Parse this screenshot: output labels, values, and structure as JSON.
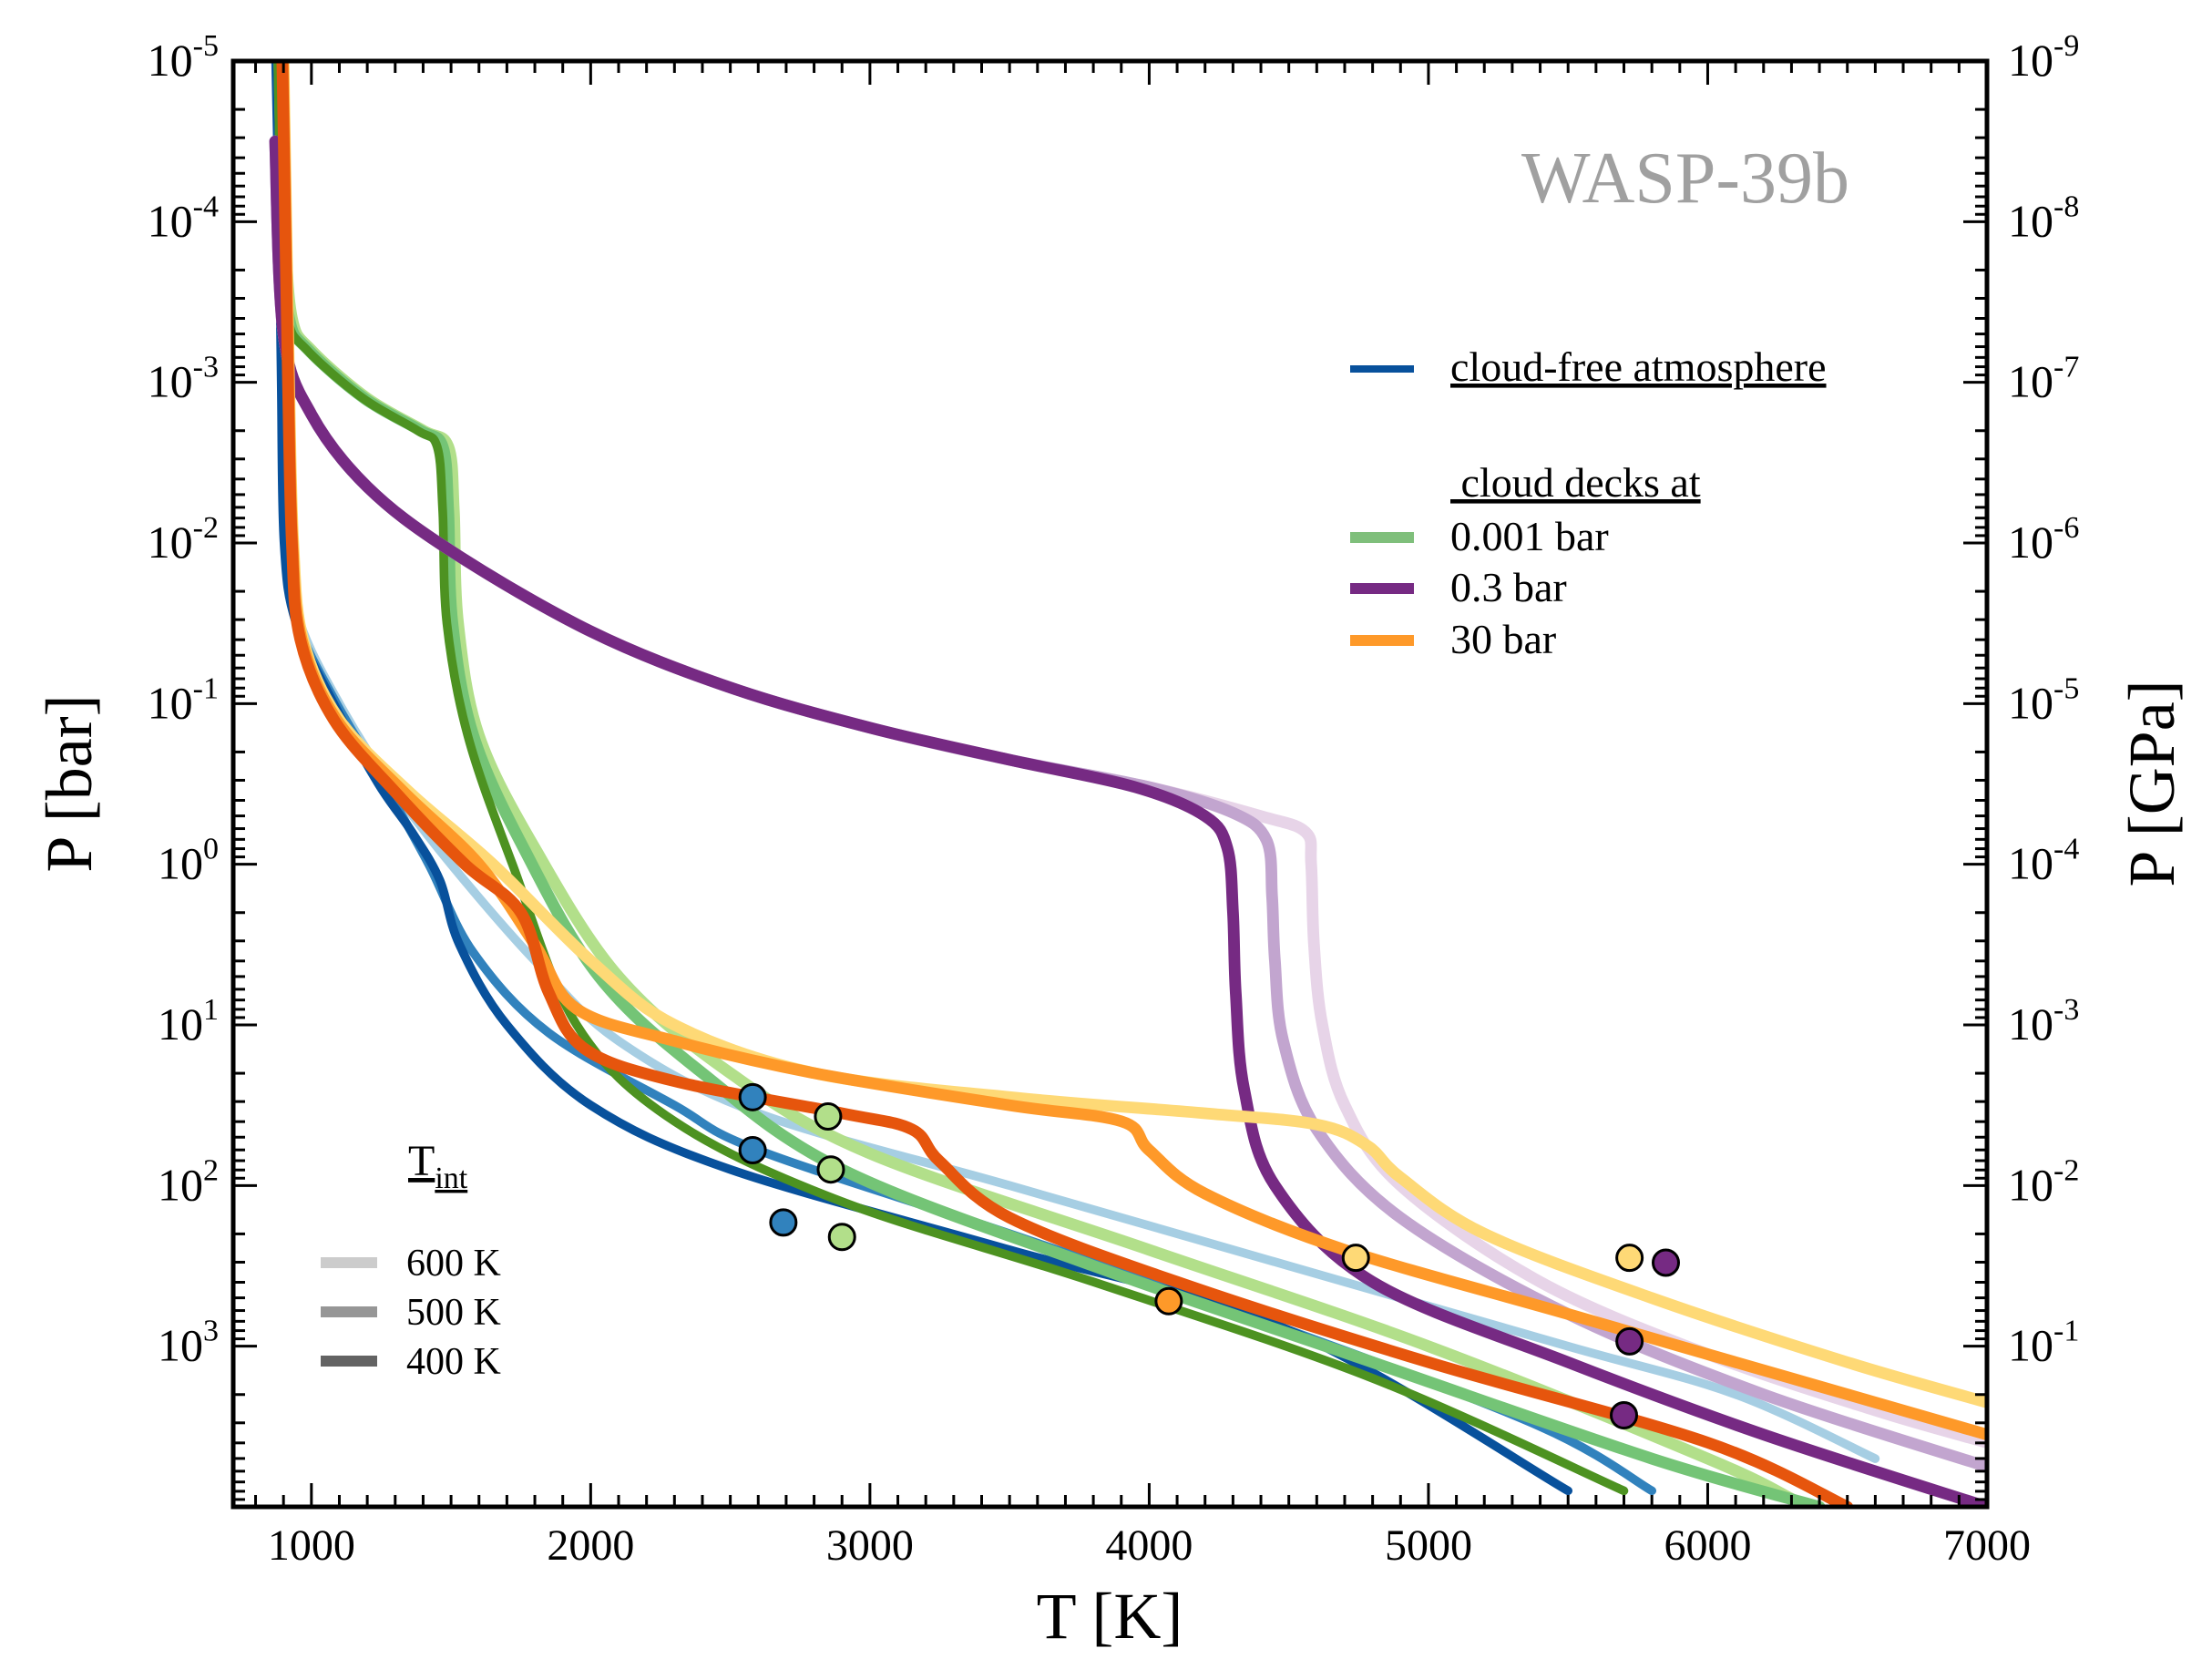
{
  "chart_data": {
    "type": "line",
    "title": "WASP-39b",
    "xlabel": "T [K]",
    "ylabel": "P [bar]",
    "ylabel_right": "P [GPa]",
    "xlim": [
      720,
      7000
    ],
    "ylim_log10_bar": [
      -5,
      4.0
    ],
    "x_ticks": [
      1000,
      2000,
      3000,
      4000,
      5000,
      6000,
      7000
    ],
    "y_ticks_left": [
      {
        "exp": -5,
        "base": "10",
        "sup": "-5"
      },
      {
        "exp": -4,
        "base": "10",
        "sup": "-4"
      },
      {
        "exp": -3,
        "base": "10",
        "sup": "-3"
      },
      {
        "exp": -2,
        "base": "10",
        "sup": "-2"
      },
      {
        "exp": -1,
        "base": "10",
        "sup": "-1"
      },
      {
        "exp": 0,
        "base": "10",
        "sup": "0"
      },
      {
        "exp": 1,
        "base": "10",
        "sup": "1"
      },
      {
        "exp": 2,
        "base": "10",
        "sup": "2"
      },
      {
        "exp": 3,
        "base": "10",
        "sup": "3"
      }
    ],
    "y_ticks_right": [
      {
        "exp": -5,
        "base": "10",
        "sup": "-9"
      },
      {
        "exp": -4,
        "base": "10",
        "sup": "-8"
      },
      {
        "exp": -3,
        "base": "10",
        "sup": "-7"
      },
      {
        "exp": -2,
        "base": "10",
        "sup": "-6"
      },
      {
        "exp": -1,
        "base": "10",
        "sup": "-5"
      },
      {
        "exp": 0,
        "base": "10",
        "sup": "-4"
      },
      {
        "exp": 1,
        "base": "10",
        "sup": "-3"
      },
      {
        "exp": 2,
        "base": "10",
        "sup": "-2"
      },
      {
        "exp": 3,
        "base": "10",
        "sup": "-1"
      }
    ],
    "legend": {
      "header_cloudfree": "cloud-free atmosphere",
      "header_clouds": " cloud decks at",
      "entries": [
        {
          "label": "0.001 bar",
          "color": "#7fbf7b"
        },
        {
          "label": "0.3 bar",
          "color": "#762a83"
        },
        {
          "label": "30 bar",
          "color": "#fe9929"
        }
      ],
      "cloudfree_color": "#08519c"
    },
    "tint_legend": {
      "title_main": "T",
      "title_sub": "int",
      "entries": [
        {
          "label": "600 K",
          "color": "#cccccc"
        },
        {
          "label": "500 K",
          "color": "#969696"
        },
        {
          "label": "400 K",
          "color": "#636363"
        }
      ]
    },
    "series": [
      {
        "name": "cloud-free 600 K",
        "color": "#a6cee3",
        "width": 6,
        "points": [
          [
            880,
            -5
          ],
          [
            892,
            -4
          ],
          [
            900,
            -3
          ],
          [
            910,
            -2
          ],
          [
            960,
            -1.5
          ],
          [
            1100,
            -1
          ],
          [
            1280,
            -0.5
          ],
          [
            1500,
            0
          ],
          [
            1800,
            0.6
          ],
          [
            2100,
            1.1
          ],
          [
            2600,
            1.55
          ],
          [
            3500,
            2.0
          ],
          [
            4500,
            2.5
          ],
          [
            5500,
            3.0
          ],
          [
            6100,
            3.3
          ],
          [
            6600,
            3.7
          ]
        ]
      },
      {
        "name": "cloud-free 500 K",
        "color": "#3182bd",
        "width": 6,
        "points": [
          [
            875,
            -5
          ],
          [
            887,
            -4
          ],
          [
            895,
            -3
          ],
          [
            905,
            -2
          ],
          [
            950,
            -1.5
          ],
          [
            1090,
            -1
          ],
          [
            1260,
            -0.5
          ],
          [
            1420,
            0
          ],
          [
            1580,
            0.55
          ],
          [
            1850,
            1.05
          ],
          [
            2300,
            1.5
          ],
          [
            2600,
            1.78
          ],
          [
            3500,
            2.3
          ],
          [
            4500,
            2.9
          ],
          [
            5400,
            3.5
          ],
          [
            5800,
            3.9
          ]
        ]
      },
      {
        "name": "cloud-free 400 K",
        "color": "#08519c",
        "width": 6,
        "points": [
          [
            872,
            -5
          ],
          [
            884,
            -4
          ],
          [
            892,
            -3
          ],
          [
            902,
            -2
          ],
          [
            945,
            -1.5
          ],
          [
            1080,
            -1
          ],
          [
            1240,
            -0.5
          ],
          [
            1360,
            -0.2
          ],
          [
            1460,
            0.1
          ],
          [
            1530,
            0.5
          ],
          [
            1700,
            1.0
          ],
          [
            2000,
            1.5
          ],
          [
            2500,
            1.9
          ],
          [
            3500,
            2.4
          ],
          [
            4500,
            2.9
          ],
          [
            5500,
            3.9
          ]
        ]
      },
      {
        "name": "0.001 bar 600 K",
        "color": "#b2df8a",
        "width": 8,
        "points": [
          [
            890,
            -5
          ],
          [
            905,
            -4
          ],
          [
            930,
            -3.4
          ],
          [
            1000,
            -3.2
          ],
          [
            1200,
            -2.9
          ],
          [
            1400,
            -2.7
          ],
          [
            1490,
            -2.6
          ],
          [
            1510,
            -2.2
          ],
          [
            1525,
            -1.5
          ],
          [
            1600,
            -0.8
          ],
          [
            1800,
            -0.1
          ],
          [
            2100,
            0.7
          ],
          [
            2500,
            1.3
          ],
          [
            3000,
            1.8
          ],
          [
            4000,
            2.4
          ],
          [
            5000,
            3.0
          ],
          [
            6000,
            3.7
          ],
          [
            6300,
            3.95
          ]
        ]
      },
      {
        "name": "0.001 bar 500 K",
        "color": "#74c476",
        "width": 8,
        "points": [
          [
            885,
            -5
          ],
          [
            898,
            -4
          ],
          [
            920,
            -3.4
          ],
          [
            990,
            -3.2
          ],
          [
            1190,
            -2.9
          ],
          [
            1390,
            -2.7
          ],
          [
            1470,
            -2.6
          ],
          [
            1490,
            -2.2
          ],
          [
            1505,
            -1.5
          ],
          [
            1580,
            -0.8
          ],
          [
            1760,
            -0.1
          ],
          [
            2030,
            0.7
          ],
          [
            2400,
            1.3
          ],
          [
            2900,
            1.9
          ],
          [
            3800,
            2.5
          ],
          [
            4800,
            3.1
          ],
          [
            5800,
            3.7
          ],
          [
            6400,
            4.0
          ]
        ]
      },
      {
        "name": "0.001 bar 400 K",
        "color": "#4d9221",
        "width": 6,
        "points": [
          [
            880,
            -5
          ],
          [
            893,
            -4
          ],
          [
            915,
            -3.4
          ],
          [
            985,
            -3.2
          ],
          [
            1185,
            -2.9
          ],
          [
            1380,
            -2.7
          ],
          [
            1450,
            -2.6
          ],
          [
            1470,
            -2.2
          ],
          [
            1485,
            -1.5
          ],
          [
            1560,
            -0.8
          ],
          [
            1720,
            0
          ],
          [
            1950,
            1.0
          ],
          [
            2300,
            1.6
          ],
          [
            2900,
            2.1
          ],
          [
            3800,
            2.6
          ],
          [
            4800,
            3.2
          ],
          [
            5700,
            3.9
          ]
        ]
      },
      {
        "name": "0.3 bar 600 K",
        "color": "#e7d4e8",
        "width": 8,
        "points": [
          [
            870,
            -4.5
          ],
          [
            900,
            -3.3
          ],
          [
            1000,
            -2.8
          ],
          [
            1200,
            -2.35
          ],
          [
            1500,
            -1.95
          ],
          [
            2000,
            -1.45
          ],
          [
            2500,
            -1.1
          ],
          [
            3000,
            -0.85
          ],
          [
            3500,
            -0.65
          ],
          [
            4000,
            -0.48
          ],
          [
            4400,
            -0.3
          ],
          [
            4560,
            -0.2
          ],
          [
            4580,
            0.0
          ],
          [
            4590,
            0.5
          ],
          [
            4620,
            1.0
          ],
          [
            4700,
            1.5
          ],
          [
            4900,
            2.0
          ],
          [
            5400,
            2.6
          ],
          [
            6000,
            3.05
          ],
          [
            6600,
            3.4
          ],
          [
            7000,
            3.6
          ]
        ]
      },
      {
        "name": "0.3 bar 500 K",
        "color": "#c2a5cf",
        "width": 8,
        "points": [
          [
            870,
            -4.5
          ],
          [
            900,
            -3.3
          ],
          [
            1000,
            -2.8
          ],
          [
            1200,
            -2.35
          ],
          [
            1500,
            -1.95
          ],
          [
            2000,
            -1.45
          ],
          [
            2500,
            -1.1
          ],
          [
            3000,
            -0.85
          ],
          [
            3500,
            -0.65
          ],
          [
            4000,
            -0.48
          ],
          [
            4300,
            -0.32
          ],
          [
            4420,
            -0.15
          ],
          [
            4440,
            0.2
          ],
          [
            4450,
            0.6
          ],
          [
            4480,
            1.1
          ],
          [
            4600,
            1.65
          ],
          [
            4900,
            2.2
          ],
          [
            5500,
            2.8
          ],
          [
            6200,
            3.3
          ],
          [
            7000,
            3.75
          ]
        ]
      },
      {
        "name": "0.3 bar 400 K",
        "color": "#762a83",
        "width": 8,
        "points": [
          [
            870,
            -4.5
          ],
          [
            900,
            -3.3
          ],
          [
            1000,
            -2.8
          ],
          [
            1200,
            -2.35
          ],
          [
            1500,
            -1.95
          ],
          [
            2000,
            -1.45
          ],
          [
            2500,
            -1.1
          ],
          [
            3000,
            -0.85
          ],
          [
            3500,
            -0.65
          ],
          [
            3950,
            -0.48
          ],
          [
            4200,
            -0.3
          ],
          [
            4280,
            -0.1
          ],
          [
            4300,
            0.3
          ],
          [
            4310,
            0.8
          ],
          [
            4340,
            1.4
          ],
          [
            4450,
            2.0
          ],
          [
            4800,
            2.6
          ],
          [
            5500,
            3.1
          ],
          [
            6200,
            3.55
          ],
          [
            7000,
            4.0
          ]
        ]
      },
      {
        "name": "30 bar 600 K",
        "color": "#fed976",
        "width": 8,
        "points": [
          [
            900,
            -5
          ],
          [
            910,
            -4
          ],
          [
            920,
            -3
          ],
          [
            935,
            -2
          ],
          [
            970,
            -1.4
          ],
          [
            1100,
            -0.9
          ],
          [
            1350,
            -0.45
          ],
          [
            1650,
            0.0
          ],
          [
            2000,
            0.6
          ],
          [
            2300,
            1.0
          ],
          [
            2800,
            1.3
          ],
          [
            3500,
            1.45
          ],
          [
            4200,
            1.55
          ],
          [
            4600,
            1.62
          ],
          [
            4780,
            1.75
          ],
          [
            4900,
            1.95
          ],
          [
            5200,
            2.3
          ],
          [
            5800,
            2.7
          ],
          [
            6500,
            3.1
          ],
          [
            7000,
            3.35
          ]
        ]
      },
      {
        "name": "30 bar 500 K",
        "color": "#fe9929",
        "width": 8,
        "points": [
          [
            898,
            -5
          ],
          [
            908,
            -4
          ],
          [
            918,
            -3
          ],
          [
            932,
            -2
          ],
          [
            965,
            -1.4
          ],
          [
            1090,
            -0.9
          ],
          [
            1330,
            -0.45
          ],
          [
            1600,
            0.0
          ],
          [
            1800,
            0.5
          ],
          [
            1950,
            0.9
          ],
          [
            2300,
            1.1
          ],
          [
            2800,
            1.3
          ],
          [
            3500,
            1.5
          ],
          [
            3900,
            1.6
          ],
          [
            4000,
            1.78
          ],
          [
            4200,
            2.05
          ],
          [
            4700,
            2.4
          ],
          [
            5500,
            2.8
          ],
          [
            6300,
            3.2
          ],
          [
            7000,
            3.55
          ]
        ]
      },
      {
        "name": "30 bar 400 K",
        "color": "#e6550d",
        "width": 8,
        "points": [
          [
            896,
            -5
          ],
          [
            906,
            -4
          ],
          [
            916,
            -3
          ],
          [
            930,
            -2
          ],
          [
            960,
            -1.4
          ],
          [
            1080,
            -0.9
          ],
          [
            1300,
            -0.45
          ],
          [
            1550,
            0.0
          ],
          [
            1750,
            0.3
          ],
          [
            1850,
            0.8
          ],
          [
            1980,
            1.15
          ],
          [
            2300,
            1.35
          ],
          [
            2900,
            1.55
          ],
          [
            3150,
            1.65
          ],
          [
            3250,
            1.85
          ],
          [
            3500,
            2.2
          ],
          [
            4100,
            2.6
          ],
          [
            5000,
            3.1
          ],
          [
            6000,
            3.6
          ],
          [
            6500,
            4.0
          ]
        ]
      }
    ],
    "markers": [
      {
        "x": 2580,
        "y": 1.45,
        "color": "#3182bd"
      },
      {
        "x": 2580,
        "y": 1.78,
        "color": "#3182bd"
      },
      {
        "x": 2690,
        "y": 2.23,
        "color": "#3182bd"
      },
      {
        "x": 2850,
        "y": 1.57,
        "color": "#b2df8a"
      },
      {
        "x": 2860,
        "y": 1.9,
        "color": "#b2df8a"
      },
      {
        "x": 2900,
        "y": 2.32,
        "color": "#b2df8a"
      },
      {
        "x": 4070,
        "y": 2.72,
        "color": "#fe9929"
      },
      {
        "x": 4740,
        "y": 2.45,
        "color": "#fed976"
      },
      {
        "x": 5720,
        "y": 2.45,
        "color": "#fed976"
      },
      {
        "x": 5850,
        "y": 2.48,
        "color": "#762a83"
      },
      {
        "x": 5720,
        "y": 2.97,
        "color": "#762a83"
      },
      {
        "x": 5700,
        "y": 3.43,
        "color": "#762a83"
      }
    ]
  }
}
